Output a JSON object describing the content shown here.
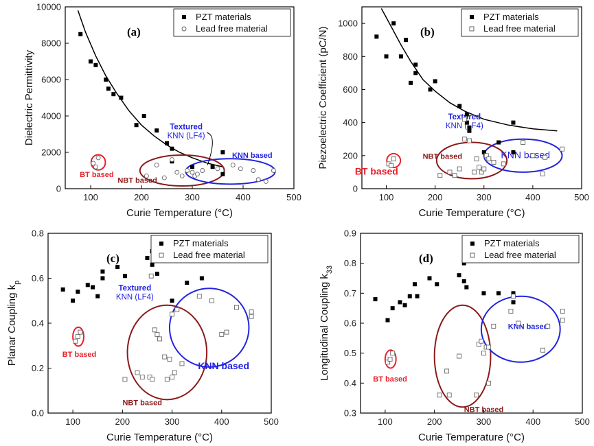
{
  "colors": {
    "pzt": "#000000",
    "leadfree": "#666666",
    "bt": "#e8212a",
    "nbt": "#8b1a1a",
    "knn": "#2323e0",
    "textured": "#2323e0",
    "fit": "#000000"
  },
  "chart_data": [
    {
      "type": "scatter",
      "panel_label": "(a)",
      "xlabel": "Curie Temperature (°C)",
      "ylabel": "Dielectric Permittivity",
      "xlim": [
        50,
        500
      ],
      "ylim": [
        0,
        10000
      ],
      "xticks": [
        100,
        200,
        300,
        400,
        500
      ],
      "yticks": [
        0,
        2000,
        4000,
        6000,
        8000,
        10000
      ],
      "legend_position": "top-right",
      "legend": [
        "PZT materials",
        "Lead free material"
      ],
      "series": [
        {
          "name": "PZT materials",
          "marker": "filled-square",
          "points": [
            [
              80,
              8500
            ],
            [
              100,
              7000
            ],
            [
              110,
              6800
            ],
            [
              130,
              6000
            ],
            [
              135,
              5500
            ],
            [
              145,
              5200
            ],
            [
              160,
              5000
            ],
            [
              190,
              3500
            ],
            [
              205,
              4000
            ],
            [
              230,
              3200
            ],
            [
              250,
              2500
            ],
            [
              260,
              2200
            ],
            [
              260,
              1500
            ],
            [
              300,
              1200
            ],
            [
              340,
              1200
            ],
            [
              360,
              2000
            ],
            [
              360,
              800
            ]
          ]
        },
        {
          "name": "Lead free material",
          "marker": "open-circle",
          "points": [
            [
              105,
              1400
            ],
            [
              110,
              1200
            ],
            [
              115,
              1700
            ],
            [
              210,
              700
            ],
            [
              230,
              1300
            ],
            [
              245,
              600
            ],
            [
              260,
              1600
            ],
            [
              270,
              900
            ],
            [
              280,
              700
            ],
            [
              290,
              1000
            ],
            [
              300,
              900
            ],
            [
              305,
              700
            ],
            [
              310,
              800
            ],
            [
              320,
              1000
            ],
            [
              350,
              1100
            ],
            [
              380,
              1300
            ],
            [
              395,
              1100
            ],
            [
              420,
              1000
            ],
            [
              430,
              500
            ],
            [
              445,
              400
            ],
            [
              460,
              1000
            ]
          ]
        }
      ],
      "trend_line": {
        "x": [
          75,
          90,
          110,
          130,
          150,
          175,
          200,
          225,
          250,
          275,
          300,
          330,
          360
        ],
        "y": [
          9800,
          8600,
          7300,
          6200,
          5300,
          4300,
          3500,
          2900,
          2400,
          2000,
          1700,
          1400,
          1200
        ]
      },
      "regions": [
        {
          "label": "BT based",
          "cx": 115,
          "cy": 1450,
          "rx": 14,
          "ry": 420,
          "color_key": "bt",
          "label_pos": [
            112,
            650
          ]
        },
        {
          "label": "NBT based",
          "cx": 280,
          "cy": 1000,
          "rx": 83,
          "ry": 850,
          "color_key": "nbt",
          "label_pos": [
            192,
            330
          ]
        },
        {
          "label": "KNN based",
          "cx": 375,
          "cy": 950,
          "rx": 88,
          "ry": 700,
          "color_key": "knn",
          "label_pos": [
            418,
            1700
          ]
        }
      ],
      "annotation": {
        "line1": "Textured",
        "line2": "KNN (LF4)",
        "pos": [
          288,
          3270
        ],
        "arrow_to": [
          330,
          1300
        ],
        "arrow_via": [
          350,
          2950
        ],
        "color_key": "textured"
      }
    },
    {
      "type": "scatter",
      "panel_label": "(b)",
      "xlabel": "Curie Temperature (°C)",
      "ylabel": "Piezoelectric Coefficient (pC/N)",
      "xlim": [
        50,
        500
      ],
      "ylim": [
        0,
        1100
      ],
      "xticks": [
        100,
        200,
        300,
        400,
        500
      ],
      "yticks": [
        0,
        200,
        400,
        600,
        800,
        1000
      ],
      "legend_position": "top-right",
      "legend": [
        "PZT materials",
        "Lead free material"
      ],
      "series": [
        {
          "name": "PZT materials",
          "marker": "filled-square",
          "points": [
            [
              80,
              920
            ],
            [
              100,
              800
            ],
            [
              115,
              1000
            ],
            [
              130,
              800
            ],
            [
              140,
              900
            ],
            [
              150,
              640
            ],
            [
              160,
              700
            ],
            [
              160,
              750
            ],
            [
              190,
              600
            ],
            [
              200,
              650
            ],
            [
              250,
              500
            ],
            [
              265,
              450
            ],
            [
              265,
              400
            ],
            [
              270,
              370
            ],
            [
              270,
              350
            ],
            [
              300,
              220
            ],
            [
              330,
              280
            ],
            [
              360,
              220
            ],
            [
              360,
              400
            ]
          ]
        },
        {
          "name": "Lead free material",
          "marker": "open-square",
          "points": [
            [
              105,
              150
            ],
            [
              110,
              140
            ],
            [
              115,
              180
            ],
            [
              210,
              80
            ],
            [
              230,
              100
            ],
            [
              240,
              80
            ],
            [
              250,
              120
            ],
            [
              260,
              420
            ],
            [
              260,
              300
            ],
            [
              270,
              290
            ],
            [
              280,
              100
            ],
            [
              285,
              180
            ],
            [
              290,
              130
            ],
            [
              295,
              100
            ],
            [
              300,
              120
            ],
            [
              305,
              200
            ],
            [
              310,
              180
            ],
            [
              320,
              160
            ],
            [
              340,
              150
            ],
            [
              380,
              280
            ],
            [
              400,
              200
            ],
            [
              420,
              90
            ],
            [
              425,
              190
            ],
            [
              460,
              240
            ]
          ]
        }
      ],
      "trend_line": {
        "x": [
          90,
          110,
          130,
          150,
          175,
          200,
          230,
          260,
          300,
          350,
          400,
          450
        ],
        "y": [
          1090,
          980,
          870,
          770,
          660,
          590,
          520,
          470,
          420,
          385,
          362,
          350
        ]
      },
      "regions": [
        {
          "label": "BT based",
          "cx": 115,
          "cy": 170,
          "rx": 14,
          "ry": 42,
          "color_key": "bt",
          "label_pos": [
            80,
            85
          ]
        },
        {
          "label": "NBT based",
          "cx": 275,
          "cy": 170,
          "rx": 72,
          "ry": 110,
          "color_key": "nbt",
          "label_pos": [
            215,
            180
          ]
        },
        {
          "label": "KNN based",
          "cx": 380,
          "cy": 200,
          "rx": 80,
          "ry": 100,
          "color_key": "knn",
          "label_pos": [
            385,
            185
          ]
        }
      ],
      "annotation": {
        "line1": "Textured",
        "line2": "KNN (LF4)",
        "pos": [
          260,
          420
        ],
        "color_key": "textured"
      }
    },
    {
      "type": "scatter",
      "panel_label": "(c)",
      "xlabel": "Curie Temperature (°C)",
      "ylabel": "Planar Coupling k",
      "ylabel_sub": "p",
      "xlim": [
        50,
        500
      ],
      "ylim": [
        0.0,
        0.8
      ],
      "xticks": [
        100,
        200,
        300,
        400,
        500
      ],
      "yticks": [
        0.0,
        0.2,
        0.4,
        0.6,
        0.8
      ],
      "legend_position": "top-right",
      "legend": [
        "PZT materials",
        "Lead free material"
      ],
      "series": [
        {
          "name": "PZT materials",
          "marker": "filled-square",
          "points": [
            [
              80,
              0.55
            ],
            [
              100,
              0.5
            ],
            [
              110,
              0.54
            ],
            [
              130,
              0.57
            ],
            [
              140,
              0.56
            ],
            [
              150,
              0.52
            ],
            [
              160,
              0.6
            ],
            [
              160,
              0.63
            ],
            [
              190,
              0.65
            ],
            [
              205,
              0.61
            ],
            [
              250,
              0.69
            ],
            [
              260,
              0.72
            ],
            [
              260,
              0.66
            ],
            [
              270,
              0.62
            ],
            [
              300,
              0.5
            ],
            [
              330,
              0.58
            ],
            [
              360,
              0.6
            ]
          ]
        },
        {
          "name": "Lead free material",
          "marker": "open-square",
          "points": [
            [
              105,
              0.32
            ],
            [
              110,
              0.34
            ],
            [
              115,
              0.36
            ],
            [
              205,
              0.15
            ],
            [
              230,
              0.18
            ],
            [
              240,
              0.16
            ],
            [
              255,
              0.16
            ],
            [
              258,
              0.61
            ],
            [
              260,
              0.15
            ],
            [
              265,
              0.37
            ],
            [
              270,
              0.35
            ],
            [
              275,
              0.33
            ],
            [
              285,
              0.25
            ],
            [
              290,
              0.15
            ],
            [
              295,
              0.24
            ],
            [
              300,
              0.16
            ],
            [
              300,
              0.44
            ],
            [
              305,
              0.18
            ],
            [
              310,
              0.46
            ],
            [
              320,
              0.22
            ],
            [
              355,
              0.52
            ],
            [
              380,
              0.5
            ],
            [
              400,
              0.35
            ],
            [
              410,
              0.36
            ],
            [
              430,
              0.47
            ],
            [
              460,
              0.43
            ],
            [
              460,
              0.45
            ]
          ]
        }
      ],
      "regions": [
        {
          "label": "BT based",
          "cx": 111,
          "cy": 0.34,
          "rx": 11,
          "ry": 0.042,
          "color_key": "bt",
          "label_pos": [
            113,
            0.25
          ]
        },
        {
          "label": "NBT based",
          "cx": 290,
          "cy": 0.27,
          "rx": 80,
          "ry": 0.21,
          "color_key": "nbt",
          "label_pos": [
            240,
            0.035
          ]
        },
        {
          "label": "KNN based",
          "cx": 375,
          "cy": 0.38,
          "rx": 80,
          "ry": 0.175,
          "color_key": "knn",
          "label_pos": [
            404,
            0.195
          ]
        }
      ],
      "annotation": {
        "line1": "Textured",
        "line2": "KNN (LF4)",
        "pos": [
          225,
          0.545
        ],
        "color_key": "textured"
      }
    },
    {
      "type": "scatter",
      "panel_label": "(d)",
      "xlabel": "Curie Temperature (°C)",
      "ylabel": "Longitudinal Coupling k",
      "ylabel_sub": "33",
      "xlim": [
        50,
        500
      ],
      "ylim": [
        0.3,
        0.9
      ],
      "xticks": [
        100,
        200,
        300,
        400,
        500
      ],
      "yticks": [
        0.3,
        0.4,
        0.5,
        0.6,
        0.7,
        0.8,
        0.9
      ],
      "legend_position": "top-right",
      "legend": [
        "PZT materials",
        "Lead free material"
      ],
      "series": [
        {
          "name": "PZT materials",
          "marker": "filled-square",
          "points": [
            [
              80,
              0.68
            ],
            [
              105,
              0.61
            ],
            [
              115,
              0.65
            ],
            [
              130,
              0.67
            ],
            [
              140,
              0.66
            ],
            [
              150,
              0.69
            ],
            [
              160,
              0.73
            ],
            [
              165,
              0.69
            ],
            [
              190,
              0.75
            ],
            [
              205,
              0.73
            ],
            [
              250,
              0.76
            ],
            [
              260,
              0.8
            ],
            [
              260,
              0.74
            ],
            [
              265,
              0.72
            ],
            [
              300,
              0.7
            ],
            [
              330,
              0.7
            ],
            [
              360,
              0.7
            ],
            [
              360,
              0.67
            ]
          ]
        },
        {
          "name": "Lead free material",
          "marker": "open-square",
          "points": [
            [
              105,
              0.47
            ],
            [
              110,
              0.48
            ],
            [
              115,
              0.5
            ],
            [
              210,
              0.36
            ],
            [
              225,
              0.44
            ],
            [
              230,
              0.36
            ],
            [
              250,
              0.49
            ],
            [
              285,
              0.36
            ],
            [
              290,
              0.53
            ],
            [
              295,
              0.54
            ],
            [
              300,
              0.5
            ],
            [
              305,
              0.52
            ],
            [
              310,
              0.4
            ],
            [
              310,
              0.52
            ],
            [
              320,
              0.59
            ],
            [
              355,
              0.64
            ],
            [
              360,
              0.69
            ],
            [
              370,
              0.6
            ],
            [
              420,
              0.51
            ],
            [
              430,
              0.59
            ],
            [
              460,
              0.61
            ],
            [
              460,
              0.64
            ]
          ]
        }
      ],
      "regions": [
        {
          "label": "BT based",
          "cx": 111,
          "cy": 0.48,
          "rx": 11,
          "ry": 0.03,
          "color_key": "bt",
          "label_pos": [
            110,
            0.405
          ]
        },
        {
          "label": "NBT based",
          "cx": 257,
          "cy": 0.49,
          "rx": 57,
          "ry": 0.17,
          "color_key": "nbt",
          "label_pos": [
            300,
            0.303
          ]
        },
        {
          "label": "KNN based",
          "cx": 375,
          "cy": 0.58,
          "rx": 80,
          "ry": 0.11,
          "color_key": "knn",
          "label_pos": [
            390,
            0.58
          ]
        }
      ]
    }
  ]
}
